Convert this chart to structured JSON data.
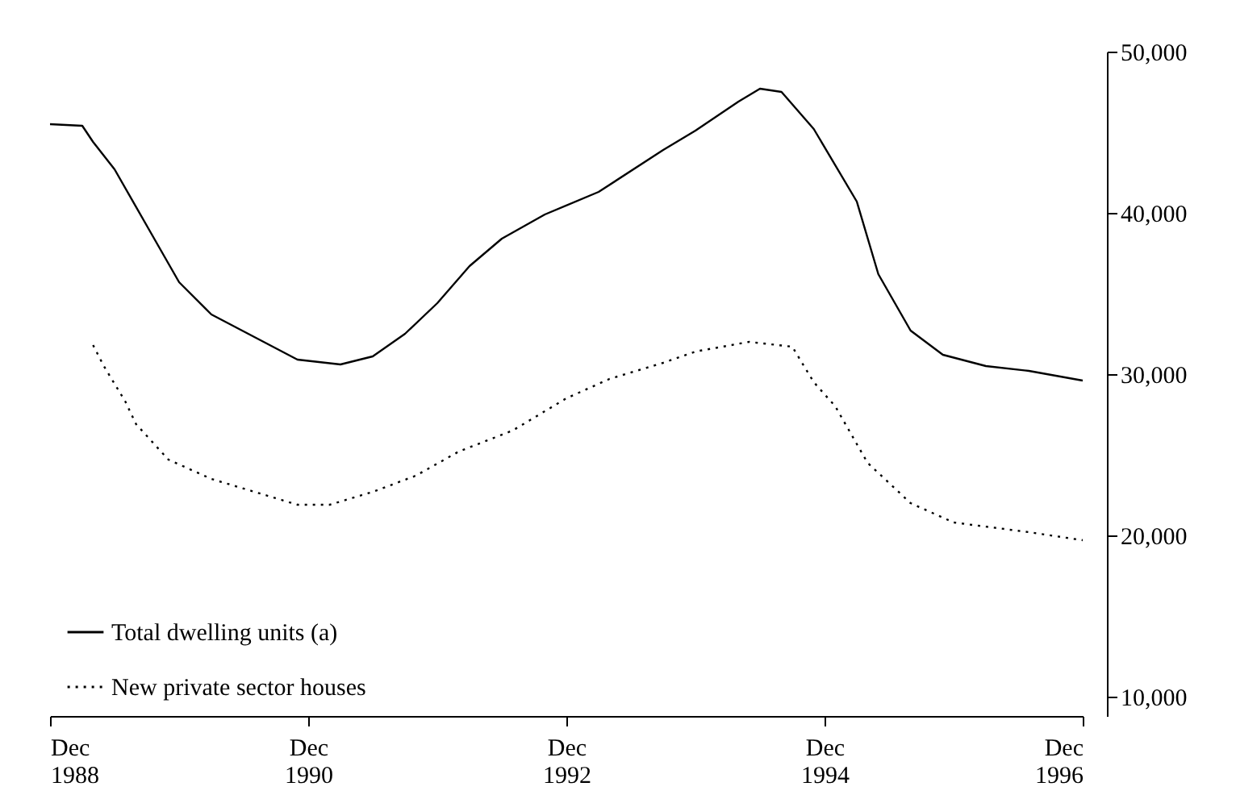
{
  "chart_data": {
    "type": "line",
    "xlim": [
      "1988-12",
      "1996-12"
    ],
    "xticks": [
      {
        "value": "1988-12",
        "label": "Dec 1988"
      },
      {
        "value": "1990-12",
        "label": "Dec 1990"
      },
      {
        "value": "1992-12",
        "label": "Dec 1992"
      },
      {
        "value": "1994-12",
        "label": "Dec 1994"
      },
      {
        "value": "1996-12",
        "label": "Dec 1996"
      }
    ],
    "ylim": [
      8800,
      50000
    ],
    "yticks": [
      {
        "value": 10000,
        "label": "10,000"
      },
      {
        "value": 20000,
        "label": "20,000"
      },
      {
        "value": 30000,
        "label": "30,000"
      },
      {
        "value": 40000,
        "label": "40,000"
      },
      {
        "value": 50000,
        "label": "50,000"
      }
    ],
    "grid": false,
    "legend": "bottom left",
    "marker": "none",
    "series": [
      {
        "name": "Total dwelling units (a)",
        "color": "#000000",
        "line_style": "solid",
        "x": [
          "1988-12",
          "1989-03",
          "1989-04",
          "1989-06",
          "1989-09",
          "1989-12",
          "1990-03",
          "1990-07",
          "1990-11",
          "1991-03",
          "1991-06",
          "1991-09",
          "1991-12",
          "1992-03",
          "1992-06",
          "1992-10",
          "1993-03",
          "1993-09",
          "1993-12",
          "1994-04",
          "1994-06",
          "1994-08",
          "1994-11",
          "1995-03",
          "1995-05",
          "1995-08",
          "1995-11",
          "1996-03",
          "1996-07",
          "1996-12"
        ],
        "values": [
          45500,
          45400,
          44400,
          42700,
          39200,
          35700,
          33700,
          32300,
          30900,
          30600,
          31100,
          32500,
          34400,
          36700,
          38400,
          39900,
          41300,
          43900,
          45100,
          46900,
          47700,
          47500,
          45200,
          40700,
          36200,
          32700,
          31200,
          30500,
          30200,
          29600
        ]
      },
      {
        "name": "New private sector houses",
        "color": "#000000",
        "line_style": "dotted",
        "x": [
          "1989-04",
          "1989-05",
          "1989-07",
          "1989-08",
          "1989-11",
          "1990-03",
          "1990-07",
          "1990-11",
          "1991-02",
          "1991-06",
          "1991-10",
          "1992-02",
          "1992-07",
          "1992-12",
          "1993-04",
          "1993-09",
          "1993-12",
          "1994-05",
          "1994-09",
          "1994-11",
          "1995-01",
          "1995-04",
          "1995-08",
          "1995-12",
          "1996-07",
          "1996-12"
        ],
        "values": [
          31800,
          30500,
          28300,
          26900,
          24700,
          23500,
          22700,
          21900,
          21900,
          22700,
          23700,
          25200,
          26500,
          28500,
          29700,
          30700,
          31400,
          32000,
          31700,
          29500,
          28000,
          24500,
          22000,
          20800,
          20200,
          19700
        ]
      }
    ]
  }
}
